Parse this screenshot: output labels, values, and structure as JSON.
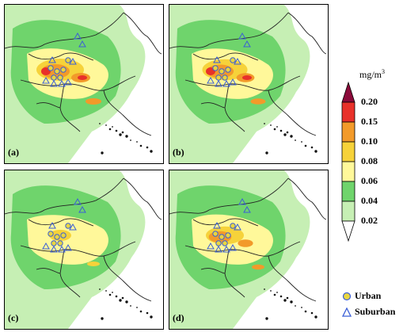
{
  "panels": [
    {
      "label": "(a)",
      "intensity": 1.0
    },
    {
      "label": "(b)",
      "intensity": 0.95
    },
    {
      "label": "(c)",
      "intensity": 0.55
    },
    {
      "label": "(d)",
      "intensity": 0.8
    }
  ],
  "colorbar": {
    "unit": "mg/m",
    "unit_sup": "3",
    "ticks": [
      "0.20",
      "0.15",
      "0.10",
      "0.08",
      "0.06",
      "0.04",
      "0.02"
    ],
    "colors": [
      "#8b0a3a",
      "#e8312a",
      "#f29a2a",
      "#f6d23a",
      "#fff89a",
      "#6fd46c",
      "#c6efb4",
      "#ffffff"
    ]
  },
  "station_legend": {
    "urban": "Urban",
    "suburban": "Suburban",
    "urban_color": "#e8d640",
    "suburban_color": "#3b5fd6"
  }
}
